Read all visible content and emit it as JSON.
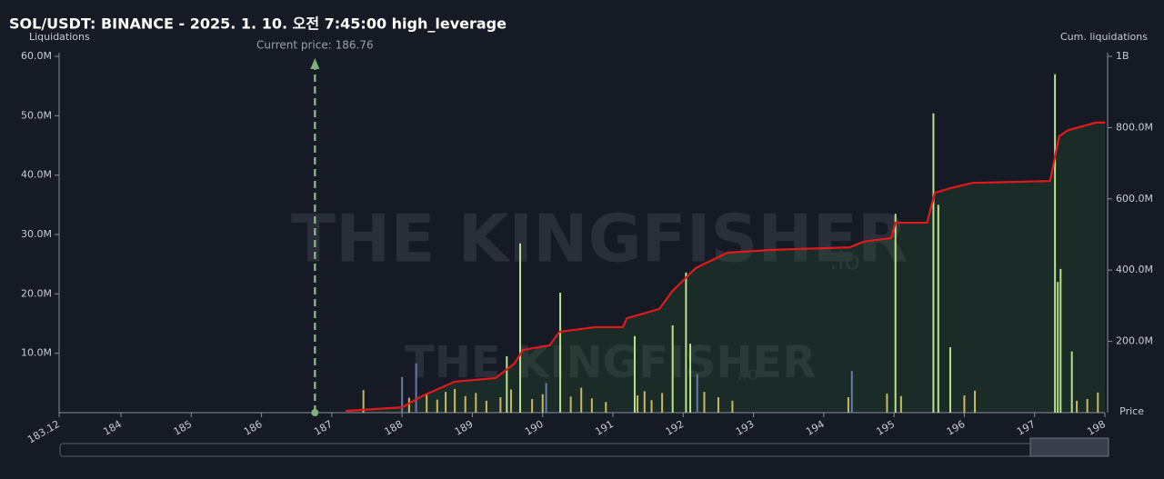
{
  "chart_data": {
    "type": "bar-line",
    "title": "SOL/USDT: BINANCE - 2025. 1. 10. 오전 7:45:00 high_leverage",
    "y_label": "Liquidations",
    "y2_label": "Cum. liquidations",
    "x_label": "Price",
    "watermark": "THE KINGFISHER",
    "watermark_suffix": ".io",
    "current_price": 186.76,
    "current_price_label": "Current price: 186.76",
    "xlim": [
      183.12,
      198
    ],
    "xticks": [
      183.12,
      184,
      185,
      186,
      187,
      188,
      189,
      190,
      191,
      192,
      193,
      194,
      195,
      196,
      197,
      198
    ],
    "ylim": [
      0,
      60000000
    ],
    "yticks": [
      {
        "value": 10000000,
        "label": "10.0M"
      },
      {
        "value": 20000000,
        "label": "20.0M"
      },
      {
        "value": 30000000,
        "label": "30.0M"
      },
      {
        "value": 40000000,
        "label": "40.0M"
      },
      {
        "value": 50000000,
        "label": "50.0M"
      },
      {
        "value": 60000000,
        "label": "60.0M"
      }
    ],
    "y2lim": [
      0,
      1000000000
    ],
    "y2ticks": [
      {
        "value": 200000000,
        "label": "200.0M"
      },
      {
        "value": 400000000,
        "label": "400.0M"
      },
      {
        "value": 600000000,
        "label": "600.0M"
      },
      {
        "value": 800000000,
        "label": "800.0M"
      },
      {
        "value": 1000000000,
        "label": "1B"
      }
    ],
    "bars": [
      {
        "color": "#c9b865",
        "x": [
          187.45,
          188.1,
          188.35,
          188.5,
          188.62,
          188.75,
          188.9,
          189.05,
          189.2,
          189.4,
          189.55,
          189.85,
          190.0,
          190.4,
          190.55,
          190.7,
          190.9,
          191.35,
          191.45,
          191.55,
          191.7,
          192.3,
          192.5,
          192.7,
          194.35,
          194.9,
          195.1,
          196.0,
          196.15,
          197.6,
          197.75,
          197.9
        ],
        "values": [
          3800000,
          2500000,
          3000000,
          2200000,
          3500000,
          4000000,
          2800000,
          3300000,
          2000000,
          2600000,
          3900000,
          2300000,
          3100000,
          2700000,
          4200000,
          2400000,
          1800000,
          2900000,
          3600000,
          2100000,
          3300000,
          3500000,
          2600000,
          2000000,
          2600000,
          3200000,
          2800000,
          2900000,
          3700000,
          2000000,
          2300000,
          3400000
        ]
      },
      {
        "color": "#b8e28c",
        "x": [
          189.49,
          189.68,
          190.25,
          191.31,
          191.85,
          192.04,
          192.1,
          195.02,
          195.56,
          195.63,
          195.8,
          197.29,
          197.33,
          197.37,
          197.53
        ],
        "values": [
          9500000,
          28500000,
          20200000,
          12900000,
          14700000,
          23600000,
          11600000,
          33500000,
          50400000,
          35000000,
          11000000,
          57000000,
          22000000,
          24200000,
          10300000
        ]
      },
      {
        "color": "#6a7aa8",
        "x": [
          188.0,
          188.2,
          190.05,
          192.2,
          194.4
        ],
        "values": [
          6000000,
          8300000,
          5000000,
          6500000,
          7000000
        ]
      }
    ],
    "series": [
      {
        "color": "#e01a1a",
        "axis": "y2",
        "x": [
          187.2,
          188.0,
          188.3,
          188.75,
          189.33,
          189.6,
          189.72,
          190.1,
          190.24,
          190.75,
          191.14,
          191.2,
          191.66,
          191.85,
          192.18,
          192.63,
          193.28,
          194.37,
          194.57,
          194.96,
          195.02,
          195.47,
          195.58,
          195.8,
          196.12,
          197.22,
          197.35,
          197.48,
          197.87,
          198
        ],
        "values": [
          5000000,
          15000000,
          48000000,
          87000000,
          97000000,
          138000000,
          176000000,
          189000000,
          227000000,
          240000000,
          240000000,
          265000000,
          291000000,
          342000000,
          406000000,
          449000000,
          457000000,
          464000000,
          480000000,
          490000000,
          533000000,
          533000000,
          617000000,
          630000000,
          645000000,
          650000000,
          776000000,
          793000000,
          814000000,
          814000000
        ]
      }
    ]
  }
}
